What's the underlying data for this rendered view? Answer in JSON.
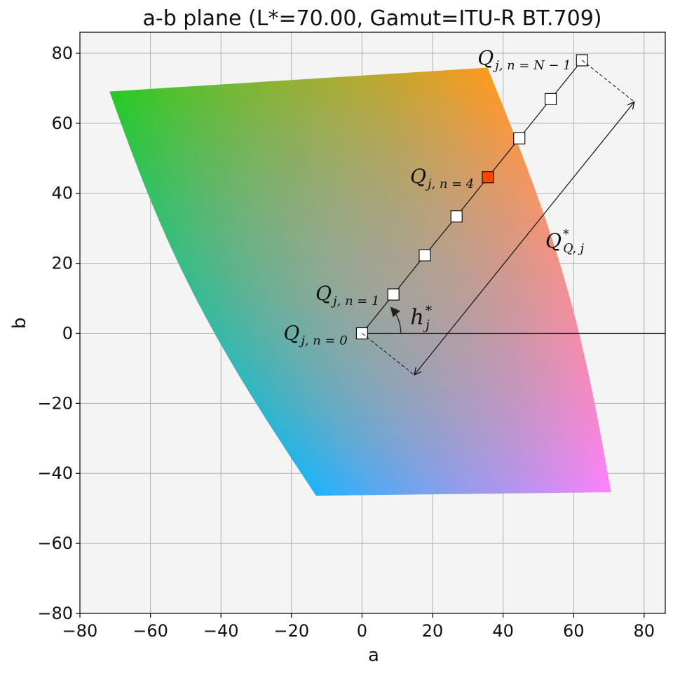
{
  "chart_data": {
    "type": "scatter",
    "title": "a-b plane (L*=70.00, Gamut=ITU-R BT.709)",
    "xlabel": "a",
    "ylabel": "b",
    "xlim": [
      -80,
      86
    ],
    "ylim": [
      -80,
      86
    ],
    "xticks": [
      -80,
      -60,
      -40,
      -20,
      0,
      20,
      40,
      60,
      80
    ],
    "yticks": [
      -80,
      -60,
      -40,
      -20,
      0,
      20,
      40,
      60,
      80
    ],
    "xtick_labels": [
      "−80",
      "−60",
      "−40",
      "−20",
      "0",
      "20",
      "40",
      "60",
      "80"
    ],
    "ytick_labels": [
      "−80",
      "−60",
      "−40",
      "−20",
      "0",
      "20",
      "40",
      "60",
      "80"
    ],
    "grid": true,
    "background_color": "#f4f4f4",
    "grid_color": "#b0b0b0",
    "gamut_boundary": {
      "corners": [
        {
          "a": -71.5,
          "b": 69,
          "color": "#22cc22"
        },
        {
          "a": 35.5,
          "b": 75.8,
          "color": "#ff9a1a"
        },
        {
          "a": 70.5,
          "b": -45.3,
          "color": "#ff80ff"
        },
        {
          "a": -13,
          "b": -46.3,
          "color": "#19b4ff"
        }
      ],
      "center_color": "#b3a2a2"
    },
    "hue_angle_deg": 51.3,
    "series": [
      {
        "type": "line+markers",
        "points": [
          {
            "a": 0,
            "b": 0
          },
          {
            "a": 8.9,
            "b": 11.1
          },
          {
            "a": 17.8,
            "b": 22.3
          },
          {
            "a": 26.8,
            "b": 33.4
          },
          {
            "a": 35.7,
            "b": 44.6
          },
          {
            "a": 44.6,
            "b": 55.7
          },
          {
            "a": 53.5,
            "b": 66.9
          },
          {
            "a": 62.4,
            "b": 78.0
          }
        ],
        "highlight_index": 4,
        "marker_color": "#ffffff",
        "highlight_color": "#ff4500"
      }
    ],
    "reference_line": {
      "b": 0,
      "from_a": 0
    },
    "annotations": [
      {
        "id": "q0",
        "text": "Q",
        "sub": "j, n = 0"
      },
      {
        "id": "q1",
        "text": "Q",
        "sub": "j, n = 1"
      },
      {
        "id": "q4",
        "text": "Q",
        "sub": "j, n = 4"
      },
      {
        "id": "qN",
        "text": "Q",
        "sub": "j, n = N − 1"
      },
      {
        "id": "hue",
        "text": "h",
        "sup": "*",
        "sub": "j"
      },
      {
        "id": "qmax",
        "text": "Q",
        "sup": "*",
        "sub": "Q, j"
      }
    ]
  }
}
